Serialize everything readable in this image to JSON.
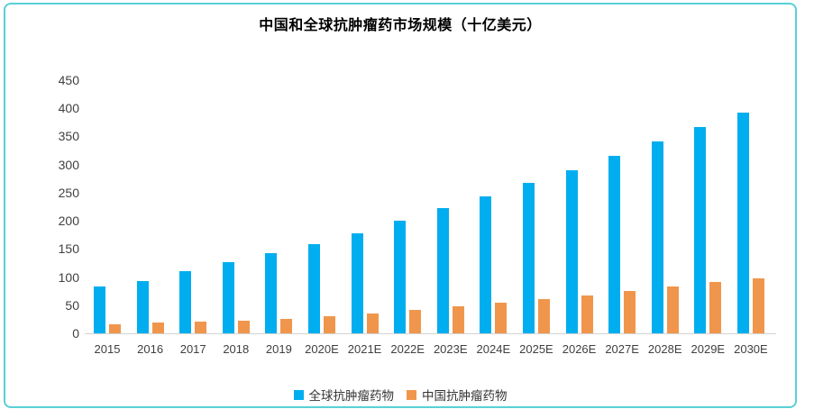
{
  "chart_data": {
    "type": "bar",
    "title": "中国和全球抗肿瘤药市场规模（十亿美元）",
    "categories": [
      "2015",
      "2016",
      "2017",
      "2018",
      "2019",
      "2020E",
      "2021E",
      "2022E",
      "2023E",
      "2024E",
      "2025E",
      "2026E",
      "2027E",
      "2028E",
      "2029E",
      "2030E"
    ],
    "series": [
      {
        "name": "全球抗肿瘤药物",
        "color": "#00AEEF",
        "values": [
          83,
          93,
          110,
          127,
          143,
          159,
          178,
          200,
          222,
          244,
          267,
          290,
          315,
          341,
          366,
          392
        ]
      },
      {
        "name": "中国抗肿瘤药物",
        "color": "#F0964C",
        "values": [
          16,
          19,
          21,
          23,
          26,
          31,
          35,
          41,
          48,
          54,
          61,
          68,
          76,
          84,
          92,
          98
        ]
      }
    ],
    "xlabel": "",
    "ylabel": "",
    "ylim": [
      0,
      450
    ],
    "y_tick_step": 50,
    "y_ticks": [
      0,
      50,
      100,
      150,
      200,
      250,
      300,
      350,
      400,
      450
    ],
    "grid": false,
    "legend_position": "bottom"
  },
  "frame": {
    "border_color": "#58D0D8",
    "axis_color": "#d2d2d2",
    "tick_color": "#404040"
  }
}
